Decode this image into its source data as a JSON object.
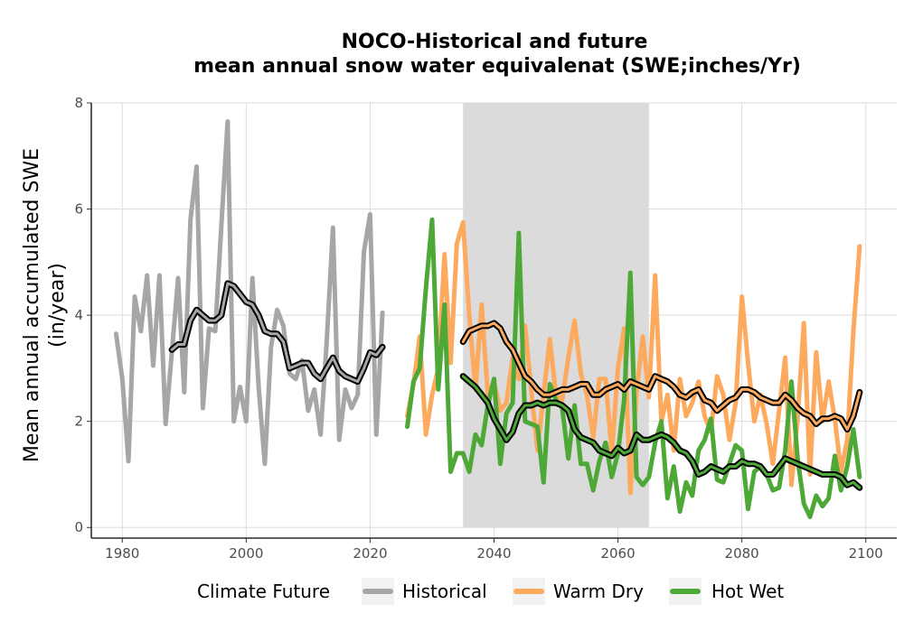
{
  "chart_data": {
    "type": "line",
    "title_line1": "NOCO-Historical and future",
    "title_line2": "mean annual snow water equivalenat (SWE;inches/Yr)",
    "xlabel": "",
    "ylabel_line1": "Mean annual accumulated SWE",
    "ylabel_line2": "(in/year)",
    "xlim": [
      1975,
      2105
    ],
    "ylim": [
      -0.2,
      8
    ],
    "x_ticks": [
      1980,
      2000,
      2020,
      2040,
      2060,
      2080,
      2100
    ],
    "y_ticks": [
      0,
      2,
      4,
      6,
      8
    ],
    "grid": true,
    "shaded_period": [
      2035,
      2065
    ],
    "legend": {
      "title": "Climate Future",
      "position": "bottom",
      "entries": [
        "Historical",
        "Warm Dry",
        "Hot Wet"
      ]
    },
    "series": [
      {
        "name": "Historical",
        "color": "#a6a6a6",
        "x": [
          1979,
          1980,
          1981,
          1982,
          1983,
          1984,
          1985,
          1986,
          1987,
          1988,
          1989,
          1990,
          1991,
          1992,
          1993,
          1994,
          1995,
          1996,
          1997,
          1998,
          1999,
          2000,
          2001,
          2002,
          2003,
          2004,
          2005,
          2006,
          2007,
          2008,
          2009,
          2010,
          2011,
          2012,
          2013,
          2014,
          2015,
          2016,
          2017,
          2018,
          2019,
          2020,
          2021,
          2022
        ],
        "values": [
          3.65,
          2.8,
          1.25,
          4.35,
          3.7,
          4.75,
          3.05,
          4.75,
          1.95,
          3.3,
          4.7,
          2.55,
          5.8,
          6.8,
          2.25,
          3.75,
          3.7,
          5.7,
          7.65,
          2.0,
          2.65,
          2.0,
          4.7,
          2.65,
          1.2,
          3.4,
          4.1,
          3.8,
          2.9,
          2.8,
          3.15,
          2.2,
          2.6,
          1.75,
          3.5,
          5.65,
          1.65,
          2.6,
          2.25,
          2.5,
          5.2,
          5.9,
          1.75,
          4.05
        ]
      },
      {
        "name": "Warm Dry",
        "color": "#fdaa5f",
        "x": [
          2026,
          2027,
          2028,
          2029,
          2030,
          2031,
          2032,
          2033,
          2034,
          2035,
          2036,
          2037,
          2038,
          2039,
          2040,
          2041,
          2042,
          2043,
          2044,
          2045,
          2046,
          2047,
          2048,
          2049,
          2050,
          2051,
          2052,
          2053,
          2054,
          2055,
          2056,
          2057,
          2058,
          2059,
          2060,
          2061,
          2062,
          2063,
          2064,
          2065,
          2066,
          2067,
          2068,
          2069,
          2070,
          2071,
          2072,
          2073,
          2074,
          2075,
          2076,
          2077,
          2078,
          2079,
          2080,
          2081,
          2082,
          2083,
          2084,
          2085,
          2086,
          2087,
          2088,
          2089,
          2090,
          2091,
          2092,
          2093,
          2094,
          2095,
          2096,
          2097,
          2098,
          2099
        ],
        "values": [
          2.1,
          2.7,
          3.6,
          1.75,
          2.5,
          3.0,
          5.15,
          3.1,
          5.35,
          5.75,
          4.0,
          2.6,
          4.2,
          2.5,
          2.75,
          2.2,
          2.35,
          3.2,
          2.8,
          3.8,
          2.6,
          1.45,
          2.5,
          3.55,
          2.5,
          2.4,
          3.2,
          3.9,
          2.9,
          2.5,
          1.7,
          2.8,
          2.8,
          1.4,
          3.0,
          3.75,
          0.65,
          2.55,
          3.6,
          2.45,
          4.75,
          2.0,
          2.5,
          1.45,
          2.8,
          2.1,
          2.35,
          2.75,
          2.1,
          1.8,
          2.85,
          2.5,
          1.65,
          2.35,
          4.35,
          3.1,
          2.0,
          2.5,
          1.95,
          1.2,
          2.2,
          3.2,
          0.8,
          2.05,
          3.85,
          1.0,
          3.3,
          2.0,
          2.75,
          2.05,
          1.05,
          1.65,
          3.7,
          5.3
        ]
      },
      {
        "name": "Hot Wet",
        "color": "#4da838",
        "x": [
          2026,
          2027,
          2028,
          2029,
          2030,
          2031,
          2032,
          2033,
          2034,
          2035,
          2036,
          2037,
          2038,
          2039,
          2040,
          2041,
          2042,
          2043,
          2044,
          2045,
          2046,
          2047,
          2048,
          2049,
          2050,
          2051,
          2052,
          2053,
          2054,
          2055,
          2056,
          2057,
          2058,
          2059,
          2060,
          2061,
          2062,
          2063,
          2064,
          2065,
          2066,
          2067,
          2068,
          2069,
          2070,
          2071,
          2072,
          2073,
          2074,
          2075,
          2076,
          2077,
          2078,
          2079,
          2080,
          2081,
          2082,
          2083,
          2084,
          2085,
          2086,
          2087,
          2088,
          2089,
          2090,
          2091,
          2092,
          2093,
          2094,
          2095,
          2096,
          2097,
          2098,
          2099
        ],
        "values": [
          1.9,
          2.75,
          3.0,
          4.5,
          5.8,
          2.6,
          4.2,
          1.05,
          1.4,
          1.4,
          1.05,
          1.75,
          1.55,
          2.3,
          2.8,
          1.2,
          2.15,
          2.35,
          5.55,
          2.0,
          1.95,
          1.9,
          0.85,
          2.7,
          2.4,
          2.25,
          1.3,
          2.3,
          1.2,
          1.2,
          0.7,
          1.25,
          1.6,
          0.95,
          1.4,
          2.4,
          4.8,
          0.95,
          0.8,
          0.95,
          1.6,
          2.0,
          0.55,
          1.15,
          0.3,
          0.85,
          0.6,
          1.45,
          1.65,
          2.05,
          0.9,
          0.85,
          1.2,
          1.55,
          1.45,
          0.35,
          1.05,
          1.15,
          1.0,
          0.7,
          0.75,
          1.45,
          2.75,
          1.3,
          0.45,
          0.2,
          0.6,
          0.4,
          0.55,
          1.35,
          0.7,
          1.15,
          1.85,
          0.95
        ]
      }
    ],
    "smoothed": [
      {
        "of": "Historical",
        "x": [
          1988,
          1989,
          1990,
          1991,
          1992,
          1993,
          1994,
          1995,
          1996,
          1997,
          1998,
          1999,
          2000,
          2001,
          2002,
          2003,
          2004,
          2005,
          2006,
          2007,
          2008,
          2009,
          2010,
          2011,
          2012,
          2013,
          2014,
          2015,
          2016,
          2017,
          2018,
          2019,
          2020,
          2021,
          2022
        ],
        "values": [
          3.35,
          3.45,
          3.45,
          3.9,
          4.1,
          4.0,
          3.9,
          3.9,
          4.0,
          4.6,
          4.55,
          4.4,
          4.25,
          4.2,
          4.0,
          3.7,
          3.65,
          3.65,
          3.5,
          3.0,
          3.05,
          3.1,
          3.1,
          2.9,
          2.8,
          3.0,
          3.2,
          2.95,
          2.85,
          2.8,
          2.75,
          3.0,
          3.3,
          3.25,
          3.4
        ]
      },
      {
        "of": "Warm Dry",
        "x": [
          2035,
          2036,
          2037,
          2038,
          2039,
          2040,
          2041,
          2042,
          2043,
          2044,
          2045,
          2046,
          2047,
          2048,
          2049,
          2050,
          2051,
          2052,
          2053,
          2054,
          2055,
          2056,
          2057,
          2058,
          2059,
          2060,
          2061,
          2062,
          2063,
          2064,
          2065,
          2066,
          2067,
          2068,
          2069,
          2070,
          2071,
          2072,
          2073,
          2074,
          2075,
          2076,
          2077,
          2078,
          2079,
          2080,
          2081,
          2082,
          2083,
          2084,
          2085,
          2086,
          2087,
          2088,
          2089,
          2090,
          2091,
          2092,
          2093,
          2094,
          2095,
          2096,
          2097,
          2098,
          2099
        ],
        "values": [
          3.5,
          3.7,
          3.75,
          3.8,
          3.8,
          3.85,
          3.75,
          3.5,
          3.35,
          3.1,
          2.85,
          2.75,
          2.6,
          2.5,
          2.5,
          2.55,
          2.6,
          2.6,
          2.65,
          2.7,
          2.7,
          2.5,
          2.5,
          2.6,
          2.65,
          2.7,
          2.6,
          2.75,
          2.7,
          2.65,
          2.6,
          2.85,
          2.8,
          2.75,
          2.65,
          2.5,
          2.45,
          2.55,
          2.6,
          2.4,
          2.35,
          2.2,
          2.3,
          2.4,
          2.45,
          2.6,
          2.6,
          2.55,
          2.45,
          2.4,
          2.35,
          2.35,
          2.5,
          2.4,
          2.25,
          2.15,
          2.1,
          1.95,
          2.05,
          2.05,
          2.1,
          2.05,
          1.85,
          2.1,
          2.55
        ]
      },
      {
        "of": "Hot Wet",
        "x": [
          2035,
          2036,
          2037,
          2038,
          2039,
          2040,
          2041,
          2042,
          2043,
          2044,
          2045,
          2046,
          2047,
          2048,
          2049,
          2050,
          2051,
          2052,
          2053,
          2054,
          2055,
          2056,
          2057,
          2058,
          2059,
          2060,
          2061,
          2062,
          2063,
          2064,
          2065,
          2066,
          2067,
          2068,
          2069,
          2070,
          2071,
          2072,
          2073,
          2074,
          2075,
          2076,
          2077,
          2078,
          2079,
          2080,
          2081,
          2082,
          2083,
          2084,
          2085,
          2086,
          2087,
          2088,
          2089,
          2090,
          2091,
          2092,
          2093,
          2094,
          2095,
          2096,
          2097,
          2098,
          2099
        ],
        "values": [
          2.85,
          2.75,
          2.65,
          2.5,
          2.35,
          2.05,
          1.85,
          1.65,
          1.8,
          2.15,
          2.3,
          2.3,
          2.35,
          2.3,
          2.35,
          2.35,
          2.3,
          2.2,
          1.85,
          1.7,
          1.65,
          1.6,
          1.45,
          1.4,
          1.35,
          1.5,
          1.4,
          1.45,
          1.75,
          1.65,
          1.65,
          1.7,
          1.75,
          1.7,
          1.6,
          1.45,
          1.4,
          1.25,
          1.0,
          1.05,
          1.15,
          1.1,
          1.05,
          1.15,
          1.15,
          1.25,
          1.2,
          1.2,
          1.15,
          1.0,
          1.0,
          1.15,
          1.3,
          1.25,
          1.2,
          1.15,
          1.1,
          1.05,
          1.0,
          1.0,
          1.0,
          0.95,
          0.8,
          0.85,
          0.75
        ]
      }
    ]
  }
}
